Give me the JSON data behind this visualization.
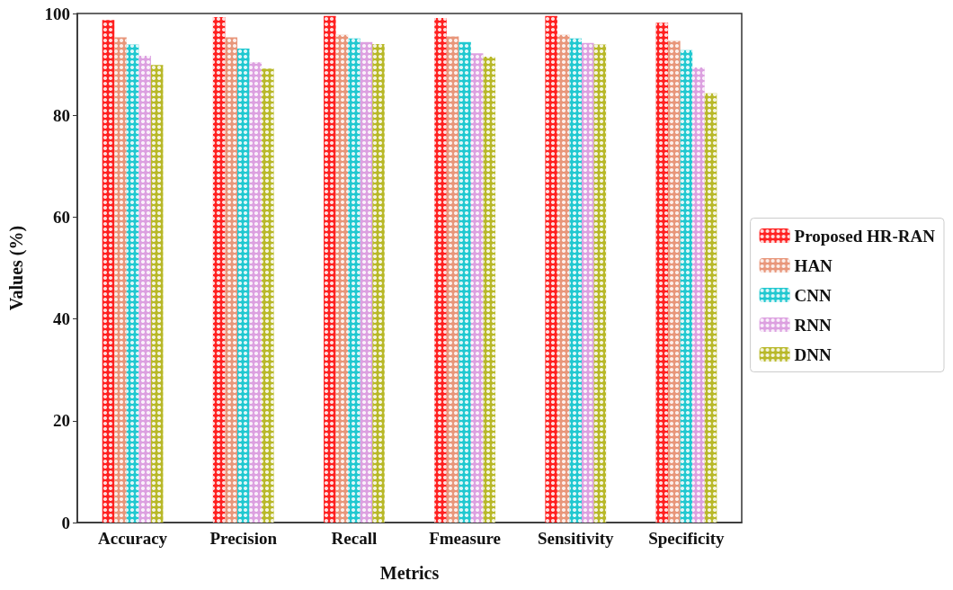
{
  "chart_data": {
    "type": "bar",
    "xlabel": "Metrics",
    "ylabel": "Values (%)",
    "categories": [
      "Accuracy",
      "Precision",
      "Recall",
      "Fmeasure",
      "Sensitivity",
      "Specificity"
    ],
    "series": [
      {
        "name": "Proposed HR-RAN",
        "color": "#ff2020",
        "values": [
          98.7,
          99.3,
          99.5,
          99.1,
          99.5,
          98.2
        ]
      },
      {
        "name": "HAN",
        "color": "#e8967a",
        "values": [
          95.3,
          95.3,
          95.8,
          95.5,
          95.8,
          94.6
        ]
      },
      {
        "name": "CNN",
        "color": "#20c8d0",
        "values": [
          93.9,
          93.1,
          95.1,
          94.4,
          95.1,
          92.8
        ]
      },
      {
        "name": "RNN",
        "color": "#dca0e0",
        "values": [
          91.7,
          90.4,
          94.4,
          92.2,
          94.2,
          89.4
        ]
      },
      {
        "name": "DNN",
        "color": "#b8b828",
        "values": [
          89.9,
          89.2,
          94.0,
          91.5,
          93.9,
          84.3
        ]
      }
    ],
    "ylim": [
      0,
      100
    ],
    "yticks": [
      0,
      20,
      40,
      60,
      80,
      100
    ],
    "grid": false,
    "legend": "right"
  }
}
